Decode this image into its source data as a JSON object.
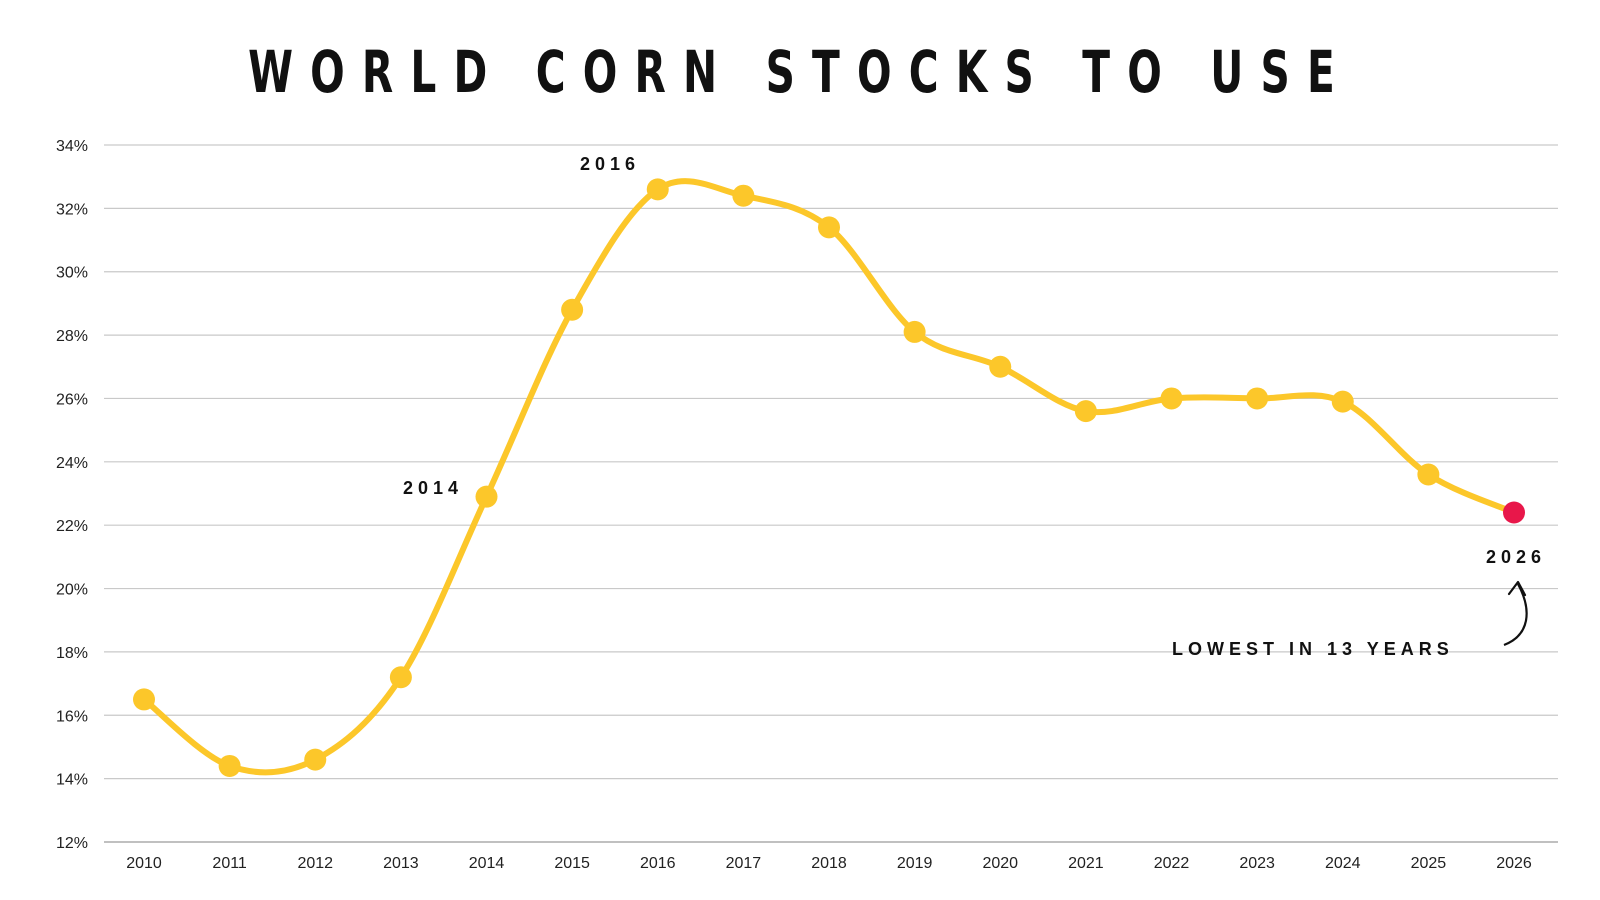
{
  "chart_data": {
    "type": "line",
    "title": "WORLD CORN STOCKS TO USE",
    "xlabel": "",
    "ylabel": "",
    "x": [
      "2010",
      "2011",
      "2012",
      "2013",
      "2014",
      "2015",
      "2016",
      "2017",
      "2018",
      "2019",
      "2020",
      "2021",
      "2022",
      "2023",
      "2024",
      "2025",
      "2026"
    ],
    "series": [
      {
        "values": [
          16.5,
          14.4,
          14.6,
          17.2,
          22.9,
          28.8,
          32.6,
          32.4,
          31.4,
          28.1,
          27.0,
          25.6,
          26.0,
          26.0,
          25.9,
          23.6,
          22.4
        ]
      }
    ],
    "ylim": [
      12,
      34
    ],
    "yticks": [
      12,
      14,
      16,
      18,
      20,
      22,
      24,
      26,
      28,
      30,
      32,
      34
    ],
    "ytick_labels": [
      "12%",
      "14%",
      "16%",
      "18%",
      "20%",
      "22%",
      "24%",
      "26%",
      "28%",
      "30%",
      "32%",
      "34%"
    ],
    "grid": true,
    "line_color": "#FCC72A",
    "highlight_color": "#E8174A",
    "annotations": {
      "label_2014": "2014",
      "label_2016": "2016",
      "label_2026": "2026",
      "callout": "LOWEST IN 13 YEARS"
    }
  }
}
